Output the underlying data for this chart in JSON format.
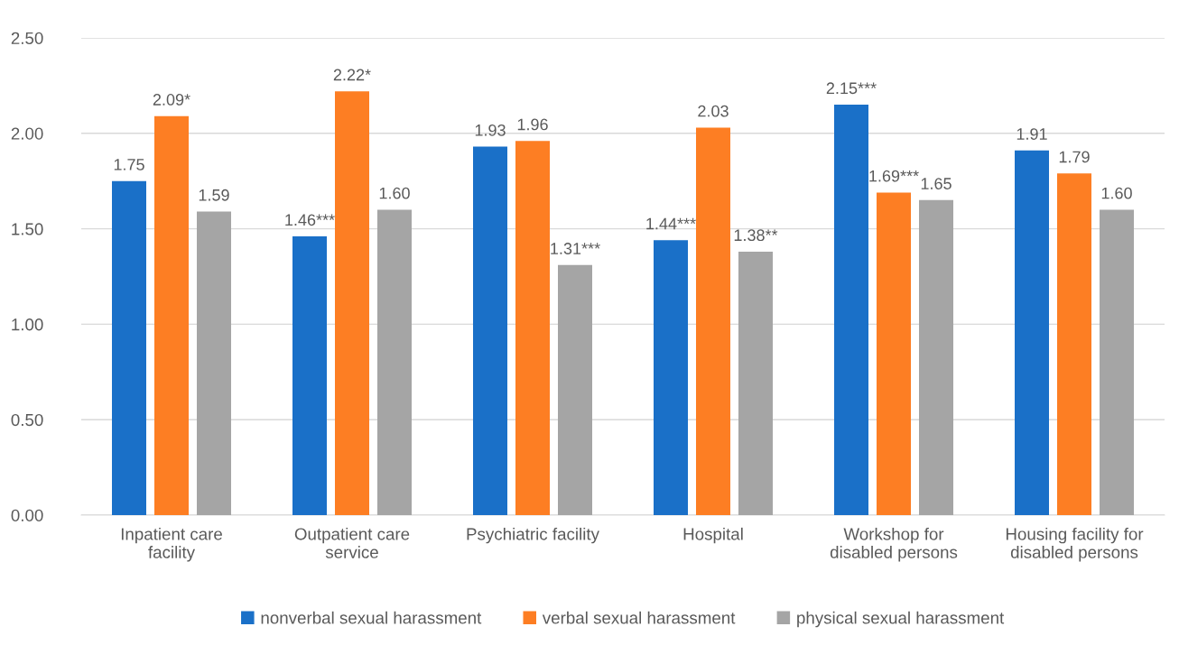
{
  "chart_data": {
    "type": "bar",
    "categories": [
      "Inpatient care\nfacility",
      "Outpatient care\nservice",
      "Psychiatric facility",
      "Hospital",
      "Workshop for\ndisabled persons",
      "Housing facility for\ndisabled persons"
    ],
    "series": [
      {
        "name": "nonverbal sexual harassment",
        "color": "#1a70c8",
        "values": [
          1.75,
          1.46,
          1.93,
          1.44,
          2.15,
          1.91
        ],
        "value_labels": [
          "1.75",
          "1.46***",
          "1.93",
          "1.44***",
          "2.15***",
          "1.91"
        ]
      },
      {
        "name": "verbal sexual harassment",
        "color": "#fd7e23",
        "values": [
          2.09,
          2.22,
          1.96,
          2.03,
          1.69,
          1.79
        ],
        "value_labels": [
          "2.09*",
          "2.22*",
          "1.96",
          "2.03",
          "1.69***",
          "1.79"
        ]
      },
      {
        "name": "physical sexual harassment",
        "color": "#a5a5a5",
        "values": [
          1.59,
          1.6,
          1.31,
          1.38,
          1.65,
          1.6
        ],
        "value_labels": [
          "1.59",
          "1.60",
          "1.31***",
          "1.38**",
          "1.65",
          "1.60"
        ]
      }
    ],
    "ylim": [
      0,
      2.5
    ],
    "yticks": [
      {
        "value": 0,
        "label": "0.00"
      },
      {
        "value": 0.5,
        "label": "0.50"
      },
      {
        "value": 1,
        "label": "1.00"
      },
      {
        "value": 1.5,
        "label": "1.50"
      },
      {
        "value": 2,
        "label": "2.00"
      },
      {
        "value": 2.5,
        "label": "2.50"
      }
    ],
    "grid": "y",
    "legend": "bottom"
  }
}
